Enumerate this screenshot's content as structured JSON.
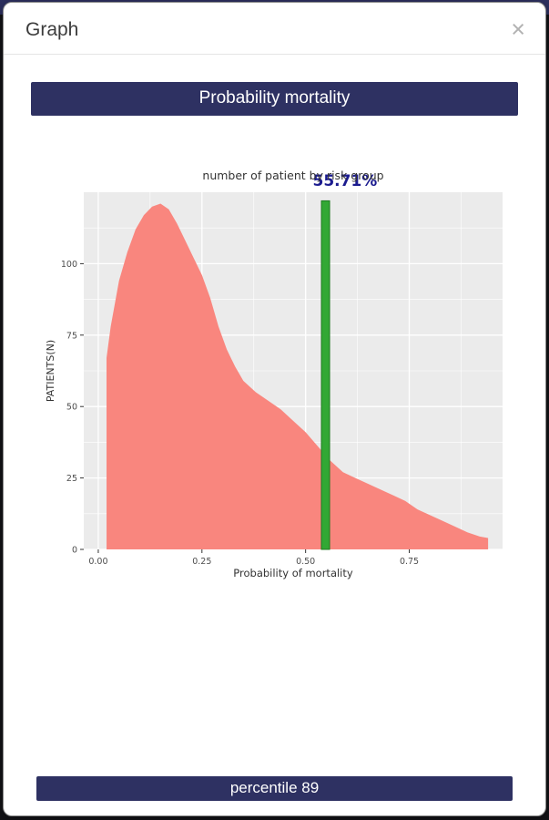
{
  "modal": {
    "title": "Graph",
    "close_icon": "×"
  },
  "banners": {
    "top": "Probability mortality",
    "bottom": "percentile 89"
  },
  "colors": {
    "banner_bg": "#2e3162",
    "area": "#f9867e",
    "marker": "#32a834",
    "marker_edge": "#1f7a21",
    "annotation": "#1b1b8f",
    "panel_bg": "#ebebeb",
    "grid": "#ffffff",
    "axis_text": "#4d4d4d",
    "title_text": "#333333"
  },
  "chart_data": {
    "type": "area",
    "title": "number of patient by risk group",
    "xlabel": "Probability of mortality",
    "ylabel": "PATIENTS(N)",
    "xlim": [
      -0.035,
      0.975
    ],
    "ylim": [
      0,
      125
    ],
    "x_ticks": [
      {
        "v": 0.0,
        "label": "0.00"
      },
      {
        "v": 0.25,
        "label": "0.25"
      },
      {
        "v": 0.5,
        "label": "0.50"
      },
      {
        "v": 0.75,
        "label": "0.75"
      }
    ],
    "y_ticks": [
      {
        "v": 0,
        "label": "0"
      },
      {
        "v": 25,
        "label": "25"
      },
      {
        "v": 50,
        "label": "50"
      },
      {
        "v": 75,
        "label": "75"
      },
      {
        "v": 100,
        "label": "100"
      }
    ],
    "x_minor": [
      0.125,
      0.375,
      0.625,
      0.875
    ],
    "y_minor": [
      12.5,
      37.5,
      62.5,
      87.5,
      112.5
    ],
    "points": [
      [
        0.02,
        67
      ],
      [
        0.03,
        78
      ],
      [
        0.05,
        94
      ],
      [
        0.07,
        104
      ],
      [
        0.09,
        112
      ],
      [
        0.11,
        117
      ],
      [
        0.13,
        120
      ],
      [
        0.15,
        121
      ],
      [
        0.17,
        119
      ],
      [
        0.19,
        114
      ],
      [
        0.21,
        108
      ],
      [
        0.23,
        102
      ],
      [
        0.25,
        96
      ],
      [
        0.27,
        88
      ],
      [
        0.29,
        78
      ],
      [
        0.31,
        70
      ],
      [
        0.33,
        64
      ],
      [
        0.35,
        59
      ],
      [
        0.38,
        55
      ],
      [
        0.41,
        52
      ],
      [
        0.44,
        49
      ],
      [
        0.47,
        45
      ],
      [
        0.5,
        41
      ],
      [
        0.53,
        36
      ],
      [
        0.56,
        31
      ],
      [
        0.59,
        27
      ],
      [
        0.62,
        25
      ],
      [
        0.65,
        23
      ],
      [
        0.68,
        21
      ],
      [
        0.71,
        19
      ],
      [
        0.74,
        17
      ],
      [
        0.77,
        14
      ],
      [
        0.8,
        12
      ],
      [
        0.83,
        10
      ],
      [
        0.86,
        8
      ],
      [
        0.89,
        6
      ],
      [
        0.92,
        4.5
      ],
      [
        0.94,
        4
      ]
    ],
    "marker": {
      "x": 0.548,
      "height": 122,
      "label": "55.71%"
    }
  }
}
